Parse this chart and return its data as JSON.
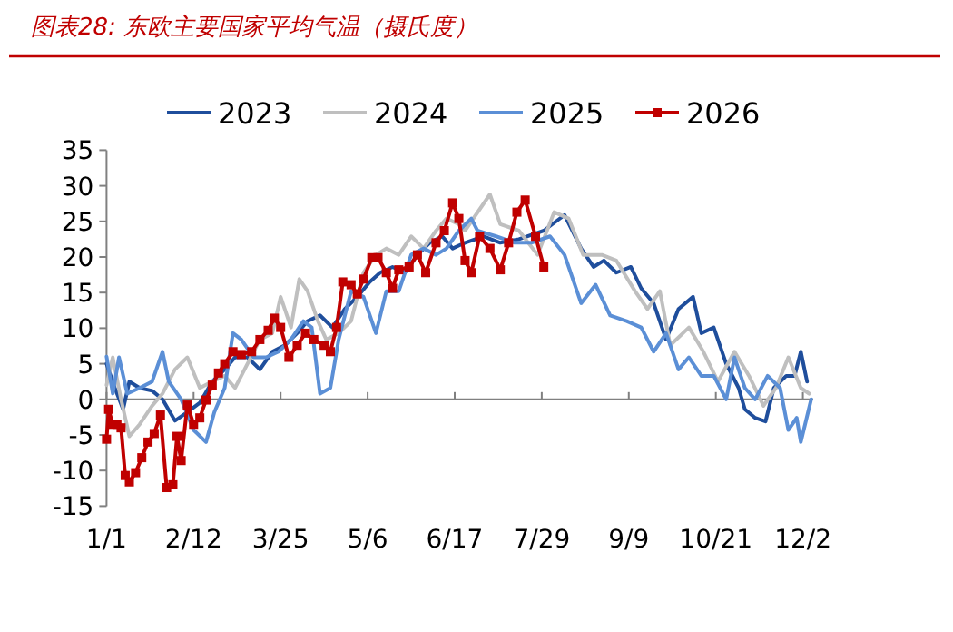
{
  "chart_data": {
    "type": "line",
    "title": "图表28: 东欧主要国家平均气温（摄氏度）",
    "xlim": [
      "--01-01",
      "--12-07"
    ],
    "xticks": [
      {
        "value": "--01-01",
        "label": "1/1"
      },
      {
        "value": "--02-12",
        "label": "2/12"
      },
      {
        "value": "--03-25",
        "label": "3/25"
      },
      {
        "value": "--05-06",
        "label": "5/6"
      },
      {
        "value": "--06-17",
        "label": "6/17"
      },
      {
        "value": "--07-29",
        "label": "7/29"
      },
      {
        "value": "--09-09",
        "label": "9/9"
      },
      {
        "value": "--10-21",
        "label": "10/21"
      },
      {
        "value": "--12-02",
        "label": "12/2"
      }
    ],
    "ylim": [
      -15,
      35
    ],
    "yticks": [
      -15,
      -10,
      -5,
      0,
      5,
      10,
      15,
      20,
      25,
      30,
      35
    ],
    "legend": "top",
    "marker": "none",
    "line_style": "solid",
    "series": [
      {
        "name": "2023",
        "color": "#1f4e9c",
        "x": [
          "--01-01",
          "--01-05",
          "--01-09",
          "--01-12",
          "--01-17",
          "--01-23",
          "--01-28",
          "--02-03",
          "--02-09",
          "--02-15",
          "--02-21",
          "--02-27",
          "--03-03",
          "--03-09",
          "--03-15",
          "--03-21",
          "--03-27",
          "--04-02",
          "--04-07",
          "--04-13",
          "--04-19",
          "--04-25",
          "--05-01",
          "--05-07",
          "--05-12",
          "--05-18",
          "--05-24",
          "--05-30",
          "--06-05",
          "--06-11",
          "--06-16",
          "--06-22",
          "--07-01",
          "--07-09",
          "--07-18",
          "--07-30",
          "--08-09",
          "--08-17",
          "--08-23",
          "--08-28",
          "--09-03",
          "--09-10",
          "--09-15",
          "--09-21",
          "--09-27",
          "--10-03",
          "--10-10",
          "--10-14",
          "--10-20",
          "--10-26",
          "--11-01",
          "--11-04",
          "--11-09",
          "--11-14",
          "--11-18",
          "--11-24",
          "--11-28",
          "--12-01",
          "--12-04"
        ],
        "values": [
          5,
          1.6,
          -1.4,
          2.5,
          1.6,
          1.2,
          0,
          -3,
          -1.8,
          -0.5,
          2.5,
          4.2,
          5.9,
          5.9,
          4.2,
          6.7,
          7.6,
          9.3,
          11,
          11.8,
          10.1,
          12.7,
          14.4,
          16.5,
          17.8,
          18.6,
          17.8,
          20.3,
          22,
          22.9,
          21.2,
          22,
          22.9,
          22,
          22.5,
          23.7,
          25.9,
          21.2,
          18.6,
          19.5,
          17.8,
          18.6,
          15.6,
          13.5,
          8.4,
          12.7,
          14.4,
          9.3,
          10.1,
          5,
          1.6,
          -1.4,
          -2.6,
          -3.1,
          1.6,
          3.3,
          3.3,
          6.7,
          2.5
        ]
      },
      {
        "name": "2024",
        "color": "#bfbfbf",
        "x": [
          "--01-01",
          "--01-04",
          "--01-08",
          "--01-12",
          "--01-17",
          "--01-23",
          "--01-28",
          "--02-03",
          "--02-09",
          "--02-15",
          "--02-21",
          "--02-27",
          "--03-03",
          "--03-09",
          "--03-15",
          "--03-21",
          "--03-25",
          "--03-30",
          "--04-03",
          "--04-07",
          "--04-12",
          "--04-16",
          "--04-22",
          "--04-28",
          "--05-04",
          "--05-10",
          "--05-15",
          "--05-21",
          "--05-27",
          "--06-02",
          "--06-08",
          "--06-13",
          "--06-19",
          "--06-22",
          "--07-04",
          "--07-09",
          "--07-18",
          "--07-27",
          "--08-04",
          "--08-11",
          "--08-18",
          "--08-27",
          "--09-03",
          "--09-12",
          "--09-18",
          "--09-24",
          "--09-29",
          "--10-08",
          "--10-15",
          "--10-22",
          "--10-30",
          "--11-06",
          "--11-13",
          "--11-19",
          "--11-25",
          "--12-01",
          "--12-05"
        ],
        "values": [
          2,
          5.9,
          0,
          -5.2,
          -3.5,
          -0.9,
          0.8,
          4.2,
          5.9,
          1.6,
          2.5,
          3.3,
          1.6,
          5,
          8.4,
          9.3,
          14.4,
          10.1,
          16.9,
          15.2,
          11,
          8.4,
          9.3,
          11,
          17.8,
          20.3,
          21.2,
          20.3,
          22.9,
          21.2,
          23.7,
          25.4,
          24.6,
          23.7,
          28.8,
          24.6,
          23.7,
          20.3,
          26.3,
          25.4,
          20.3,
          20.3,
          19.5,
          15.2,
          12.7,
          15.2,
          7.6,
          10.1,
          6.7,
          2.5,
          6.7,
          3.3,
          -0.9,
          1.6,
          5.9,
          1.6,
          0.8
        ]
      },
      {
        "name": "2025",
        "color": "#5b8fd6",
        "x": [
          "--01-01",
          "--01-04",
          "--01-07",
          "--01-11",
          "--01-17",
          "--01-23",
          "--01-28",
          "--01-31",
          "--02-06",
          "--02-12",
          "--02-18",
          "--02-22",
          "--02-27",
          "--03-02",
          "--03-06",
          "--03-12",
          "--03-18",
          "--03-24",
          "--03-30",
          "--04-05",
          "--04-09",
          "--04-13",
          "--04-18",
          "--04-22",
          "--04-28",
          "--05-04",
          "--05-10",
          "--05-15",
          "--05-21",
          "--05-27",
          "--06-02",
          "--06-08",
          "--06-13",
          "--06-19",
          "--06-25",
          "--06-28",
          "--07-07",
          "--07-16",
          "--07-24",
          "--08-02",
          "--08-09",
          "--08-17",
          "--08-24",
          "--08-31",
          "--09-08",
          "--09-15",
          "--09-21",
          "--09-27",
          "--10-03",
          "--10-08",
          "--10-14",
          "--10-20",
          "--10-26",
          "--10-30",
          "--11-04",
          "--11-09",
          "--11-15",
          "--11-21",
          "--11-25",
          "--11-29",
          "--12-01",
          "--12-06"
        ],
        "values": [
          6,
          0.8,
          5.9,
          0.8,
          1.6,
          2.5,
          6.7,
          2.5,
          0,
          -4.3,
          -6,
          -1.8,
          1.6,
          9.3,
          8.4,
          5.9,
          5.9,
          6.7,
          8.4,
          11,
          10.1,
          0.8,
          1.6,
          8.4,
          15.2,
          14.4,
          9.3,
          15.2,
          15.2,
          20.3,
          21.2,
          20.3,
          21.2,
          23.7,
          25.4,
          23.7,
          22.9,
          22,
          22,
          22.9,
          20.3,
          13.5,
          16.1,
          11.8,
          11,
          10.1,
          6.7,
          9.3,
          4.2,
          5.9,
          3.3,
          3.3,
          0,
          5.9,
          1.6,
          0,
          3.3,
          1.6,
          -4.3,
          -2.6,
          -6,
          0
        ]
      },
      {
        "name": "2026",
        "color": "#c00000",
        "marker": "square",
        "x": [
          "--01-01",
          "--01-02",
          "--01-04",
          "--01-06",
          "--01-08",
          "--01-10",
          "--01-12",
          "--01-15",
          "--01-18",
          "--01-21",
          "--01-24",
          "--01-27",
          "--01-30",
          "--02-02",
          "--02-04",
          "--02-06",
          "--02-09",
          "--02-12",
          "--02-15",
          "--02-18",
          "--02-21",
          "--02-24",
          "--02-27",
          "--03-02",
          "--03-06",
          "--03-11",
          "--03-15",
          "--03-19",
          "--03-22",
          "--03-25",
          "--03-29",
          "--04-02",
          "--04-06",
          "--04-10",
          "--04-15",
          "--04-18",
          "--04-21",
          "--04-24",
          "--04-28",
          "--05-01",
          "--05-04",
          "--05-08",
          "--05-11",
          "--05-15",
          "--05-18",
          "--05-21",
          "--05-26",
          "--05-30",
          "--06-03",
          "--06-08",
          "--06-12",
          "--06-16",
          "--06-19",
          "--06-22",
          "--06-25",
          "--06-29",
          "--07-04",
          "--07-09",
          "--07-13",
          "--07-17",
          "--07-21",
          "--07-26",
          "--07-30"
        ],
        "values": [
          -5.6,
          -1.4,
          -3.5,
          -3.5,
          -4,
          -10.7,
          -11.6,
          -10.3,
          -8.2,
          -6,
          -4.8,
          -2.2,
          -12.4,
          -12,
          -5.2,
          -8.6,
          -0.8,
          -3.5,
          -2.6,
          -0.1,
          2,
          3.7,
          5,
          6.7,
          6.3,
          6.7,
          8.4,
          9.7,
          11.4,
          10.1,
          5.9,
          7.6,
          9.3,
          8.4,
          7.6,
          6.7,
          10.1,
          16.5,
          16.1,
          14.8,
          16.9,
          19.9,
          19.9,
          17.8,
          15.6,
          18.2,
          18.6,
          20.3,
          17.8,
          22,
          23.7,
          27.6,
          25.4,
          19.5,
          17.8,
          22.9,
          21.2,
          18.2,
          22,
          26.3,
          28,
          22.9,
          18.6
        ]
      }
    ]
  }
}
